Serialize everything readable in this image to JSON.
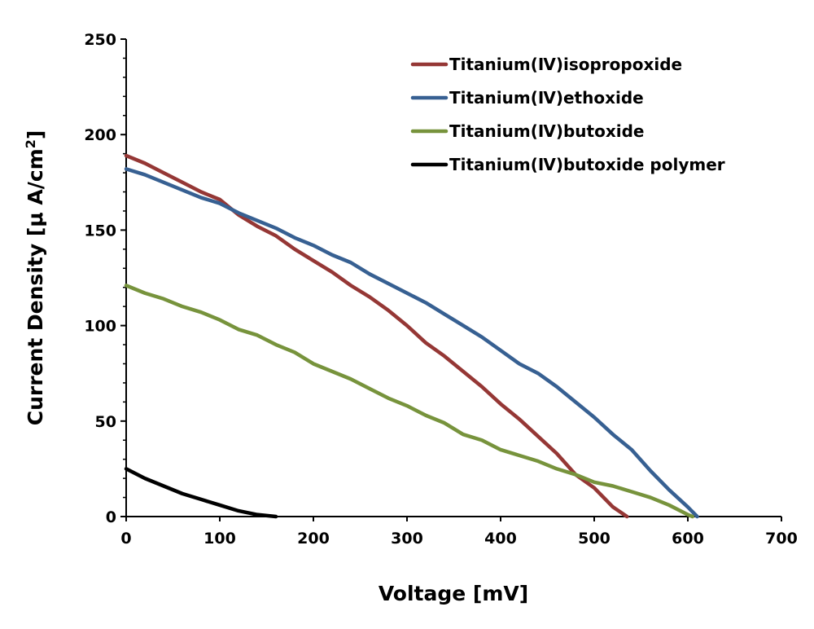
{
  "chart_data": {
    "type": "line",
    "xlabel": "Voltage [mV]",
    "ylabel": "Current Density [μA/cm²]",
    "ylabel_parts": {
      "main": "Current Density [μ A/cm",
      "sup": "2",
      "end": "]"
    },
    "xlim": [
      0,
      700
    ],
    "ylim": [
      0,
      250
    ],
    "xticks": [
      "0",
      "100",
      "200",
      "300",
      "400",
      "500",
      "600",
      "700"
    ],
    "yticks": [
      "0",
      "50",
      "100",
      "150",
      "200",
      "250"
    ],
    "grid": false,
    "legend_position": "top-right",
    "series": [
      {
        "name": "Titanium(Ⅳ)isopropoxide",
        "color": "#953735",
        "x": [
          0,
          20,
          40,
          60,
          80,
          100,
          120,
          140,
          160,
          180,
          200,
          220,
          240,
          260,
          280,
          300,
          320,
          340,
          360,
          380,
          400,
          420,
          440,
          460,
          480,
          500,
          520,
          535
        ],
        "y": [
          189,
          185,
          180,
          175,
          170,
          166,
          158,
          152,
          147,
          140,
          134,
          128,
          121,
          115,
          108,
          100,
          91,
          84,
          76,
          68,
          59,
          51,
          42,
          33,
          22,
          15,
          5,
          0
        ]
      },
      {
        "name": "Titanium(Ⅳ)ethoxide",
        "color": "#376092",
        "x": [
          0,
          20,
          40,
          60,
          80,
          100,
          120,
          140,
          160,
          180,
          200,
          220,
          240,
          260,
          280,
          300,
          320,
          340,
          360,
          380,
          400,
          420,
          440,
          460,
          480,
          500,
          520,
          540,
          560,
          580,
          600,
          610
        ],
        "y": [
          182,
          179,
          175,
          171,
          167,
          164,
          159,
          155,
          151,
          146,
          142,
          137,
          133,
          127,
          122,
          117,
          112,
          106,
          100,
          94,
          87,
          80,
          75,
          68,
          60,
          52,
          43,
          35,
          24,
          14,
          5,
          0
        ]
      },
      {
        "name": "Titanium(Ⅳ)butoxide",
        "color": "#77933C",
        "x": [
          0,
          20,
          40,
          60,
          80,
          100,
          120,
          140,
          160,
          180,
          200,
          220,
          240,
          260,
          280,
          300,
          320,
          340,
          360,
          380,
          400,
          420,
          440,
          460,
          480,
          500,
          520,
          540,
          560,
          580,
          600,
          605
        ],
        "y": [
          121,
          117,
          114,
          110,
          107,
          103,
          98,
          95,
          90,
          86,
          80,
          76,
          72,
          67,
          62,
          58,
          53,
          49,
          43,
          40,
          35,
          32,
          29,
          25,
          22,
          18,
          16,
          13,
          10,
          6,
          1,
          0
        ]
      },
      {
        "name": "Titanium(Ⅳ)butoxide polymer",
        "color": "#000000",
        "x": [
          0,
          20,
          40,
          60,
          80,
          100,
          120,
          140,
          160
        ],
        "y": [
          25,
          20,
          16,
          12,
          9,
          6,
          3,
          1,
          0
        ]
      }
    ]
  }
}
